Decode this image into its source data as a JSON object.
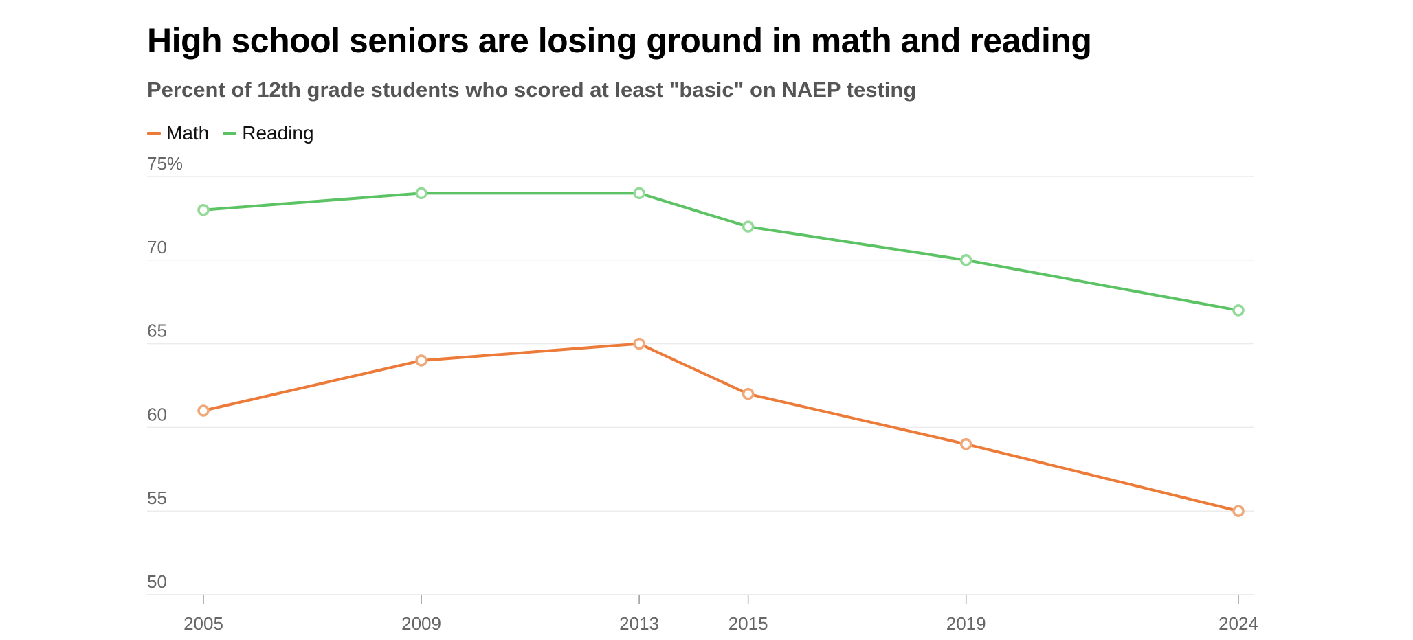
{
  "chart_data": {
    "type": "line",
    "title": "High school seniors are losing ground in math and reading",
    "subtitle": "Percent of 12th grade students who scored at least \"basic\" on NAEP testing",
    "xlabel": "",
    "ylabel": "",
    "x": [
      2005,
      2009,
      2013,
      2015,
      2019,
      2024
    ],
    "xlim": [
      2005,
      2024
    ],
    "ylim": [
      50,
      75
    ],
    "yticks": [
      50,
      55,
      60,
      65,
      70,
      75
    ],
    "ytick_labels": [
      "50",
      "55",
      "60",
      "65",
      "70",
      "75%"
    ],
    "xtick_labels": [
      "2005",
      "2009",
      "2013",
      "2015",
      "2019",
      "2024"
    ],
    "grid": true,
    "legend_position": "top-left",
    "series": [
      {
        "name": "Math",
        "color": "#EC7B39",
        "marker_color": "#F0A878",
        "values": [
          61,
          64,
          65,
          62,
          59,
          55
        ]
      },
      {
        "name": "Reading",
        "color": "#5CC365",
        "marker_color": "#93DA98",
        "values": [
          73,
          74,
          74,
          72,
          70,
          67
        ]
      }
    ]
  }
}
